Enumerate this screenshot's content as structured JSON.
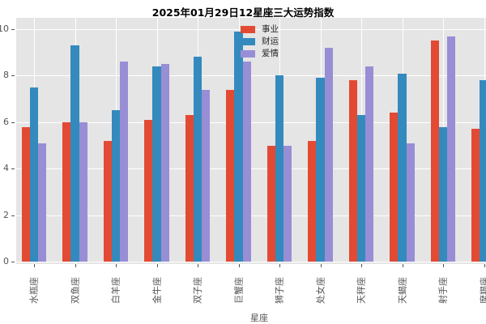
{
  "figure": {
    "title": "2025年01月29日12星座三大运势指数",
    "xlabel": "星座",
    "plot_background": "#E5E5E5",
    "grid_color": "#FFFFFF",
    "tick_label_color": "#555555"
  },
  "chart_data": {
    "type": "bar",
    "title": "2025年01月29日12星座三大运势指数",
    "xlabel": "星座",
    "ylabel": "",
    "ylim": [
      0,
      10.5
    ],
    "yticks": [
      0,
      2,
      4,
      6,
      8,
      10
    ],
    "grid": true,
    "legend_position": "upper center",
    "categories": [
      "水瓶座",
      "双鱼座",
      "白羊座",
      "金牛座",
      "双子座",
      "巨蟹座",
      "狮子座",
      "处女座",
      "天秤座",
      "天蝎座",
      "射手座",
      "摩羯座"
    ],
    "series": [
      {
        "name": "事业",
        "color": "#E24A33",
        "values": [
          5.8,
          6.0,
          5.2,
          6.1,
          6.3,
          7.4,
          5.0,
          5.2,
          7.8,
          6.4,
          9.5,
          5.7
        ]
      },
      {
        "name": "财运",
        "color": "#348ABD",
        "values": [
          7.5,
          9.3,
          6.5,
          8.4,
          8.8,
          9.9,
          8.0,
          7.9,
          6.3,
          8.1,
          5.8,
          7.8
        ]
      },
      {
        "name": "爱情",
        "color": "#988ED5",
        "values": [
          5.1,
          6.0,
          8.6,
          8.5,
          7.4,
          8.6,
          5.0,
          9.2,
          8.4,
          5.1,
          9.7,
          null
        ]
      }
    ]
  }
}
